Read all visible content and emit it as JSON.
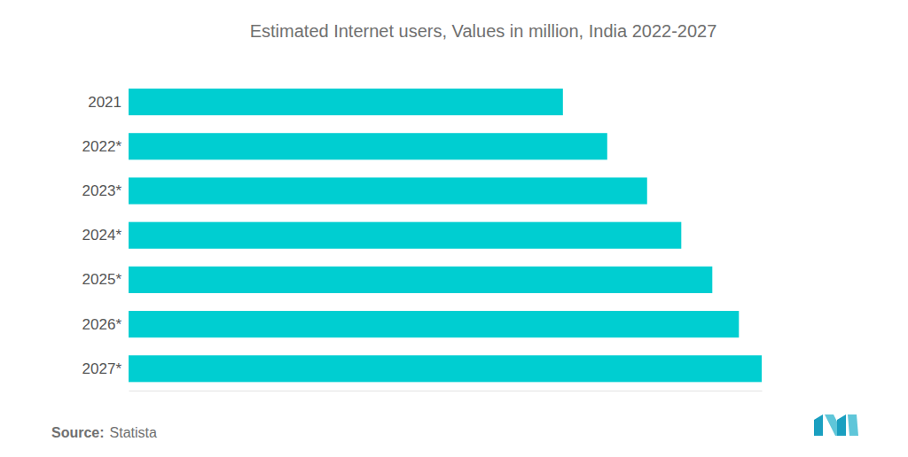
{
  "chart_data": {
    "type": "bar",
    "title": "Estimated Internet users, Values in million, India 2022-2027",
    "orientation": "horizontal",
    "categories": [
      "2021",
      "2022*",
      "2023*",
      "2024*",
      "2025*",
      "2026*",
      "2027*"
    ],
    "values": [
      686,
      756,
      819,
      873,
      922,
      964,
      1000
    ],
    "color": "#00ced1",
    "xlim": [
      0,
      1000
    ],
    "tick_labels": "y",
    "grid": false,
    "source_label": "Source:",
    "source": "Statista"
  }
}
